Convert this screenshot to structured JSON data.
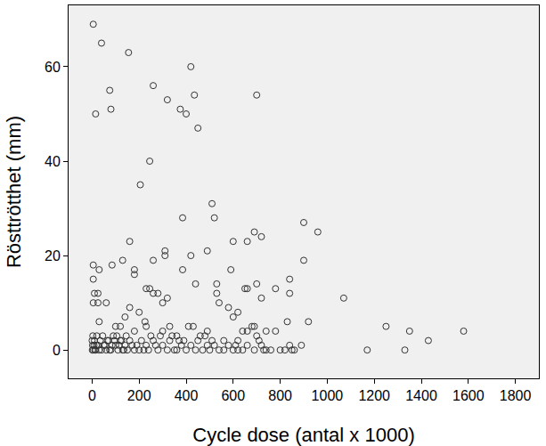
{
  "chart_data": {
    "type": "scatter",
    "x_label": "Cycle dose (antal x 1000)",
    "y_label": "Rösttrötthet (mm)",
    "x": [
      5,
      40,
      155,
      75,
      80,
      15,
      260,
      420,
      435,
      320,
      375,
      400,
      450,
      700,
      245,
      205,
      510,
      520,
      385,
      900,
      960,
      690,
      720,
      600,
      660,
      160,
      490,
      310,
      310,
      420,
      900,
      260,
      130,
      85,
      5,
      30,
      180,
      385,
      590,
      180,
      5,
      780,
      840,
      700,
      530,
      650,
      660,
      440,
      530,
      840,
      230,
      260,
      280,
      245,
      10,
      25,
      5,
      25,
      60,
      320,
      300,
      540,
      720,
      1070,
      600,
      620,
      580,
      160,
      140,
      200,
      30,
      100,
      120,
      225,
      230,
      180,
      300,
      330,
      360,
      410,
      430,
      460,
      490,
      560,
      640,
      660,
      740,
      780,
      830,
      920,
      680,
      690,
      1250,
      1350,
      1580,
      1430,
      1330,
      1170,
      850,
      840,
      800,
      860,
      820,
      760,
      740,
      720,
      710,
      700,
      620,
      600,
      640,
      660,
      560,
      540,
      520,
      500,
      490,
      470,
      450,
      440,
      420,
      400,
      390,
      380,
      360,
      350,
      330,
      320,
      300,
      290,
      280,
      270,
      260,
      250,
      240,
      230,
      220,
      210,
      200,
      190,
      180,
      170,
      160,
      150,
      140,
      130,
      120,
      110,
      100,
      90,
      80,
      70,
      60,
      50,
      40,
      35,
      30,
      25,
      20,
      15,
      10,
      8,
      5,
      3,
      2,
      1,
      0,
      12,
      18,
      45,
      55,
      65,
      75,
      85,
      95,
      105,
      115,
      125,
      135,
      145,
      620,
      610,
      690,
      730,
      890,
      510,
      580,
      340,
      370,
      480
    ],
    "values": [
      69,
      65,
      63,
      55,
      51,
      50,
      56,
      60,
      54,
      53,
      51,
      50,
      47,
      54,
      40,
      35,
      31,
      28,
      28,
      27,
      25,
      25,
      24,
      23,
      23,
      23,
      21,
      21,
      20,
      20,
      19,
      19,
      19,
      18,
      18,
      17,
      17,
      17,
      17,
      16,
      15,
      13,
      15,
      14,
      14,
      13,
      13,
      14,
      12,
      12,
      13,
      12,
      12,
      13,
      12,
      12,
      10,
      10,
      10,
      11,
      10,
      10,
      11,
      11,
      7,
      8,
      9,
      9,
      7,
      8,
      6,
      5,
      5,
      6,
      5,
      4,
      4,
      5,
      3,
      5,
      5,
      3,
      4,
      2,
      4,
      4,
      4,
      4,
      6,
      6,
      5,
      5,
      5,
      4,
      4,
      2,
      0,
      0,
      0,
      1,
      0,
      0,
      0,
      0,
      0,
      1,
      2,
      3,
      0,
      0,
      0,
      1,
      0,
      0,
      1,
      0,
      1,
      0,
      2,
      0,
      1,
      0,
      2,
      1,
      0,
      0,
      2,
      0,
      1,
      3,
      0,
      1,
      2,
      3,
      0,
      1,
      0,
      2,
      0,
      1,
      0,
      1,
      2,
      0,
      1,
      0,
      2,
      0,
      1,
      3,
      0,
      2,
      0,
      1,
      0,
      2,
      0,
      1,
      3,
      0,
      2,
      1,
      0,
      3,
      1,
      0,
      2,
      0,
      1,
      3,
      1,
      2,
      0,
      1,
      2,
      3,
      1,
      2,
      0,
      3,
      2,
      1,
      0,
      0,
      1,
      2,
      1,
      3,
      2,
      3
    ],
    "color": "#333333",
    "marker": "circle-open",
    "xlim": [
      -100,
      1900
    ],
    "xticks": [
      0,
      200,
      400,
      600,
      800,
      1000,
      1200,
      1400,
      1600,
      1800
    ],
    "ylim": [
      -6,
      73
    ],
    "yticks": [
      0,
      20,
      40,
      60
    ],
    "grid": false
  }
}
